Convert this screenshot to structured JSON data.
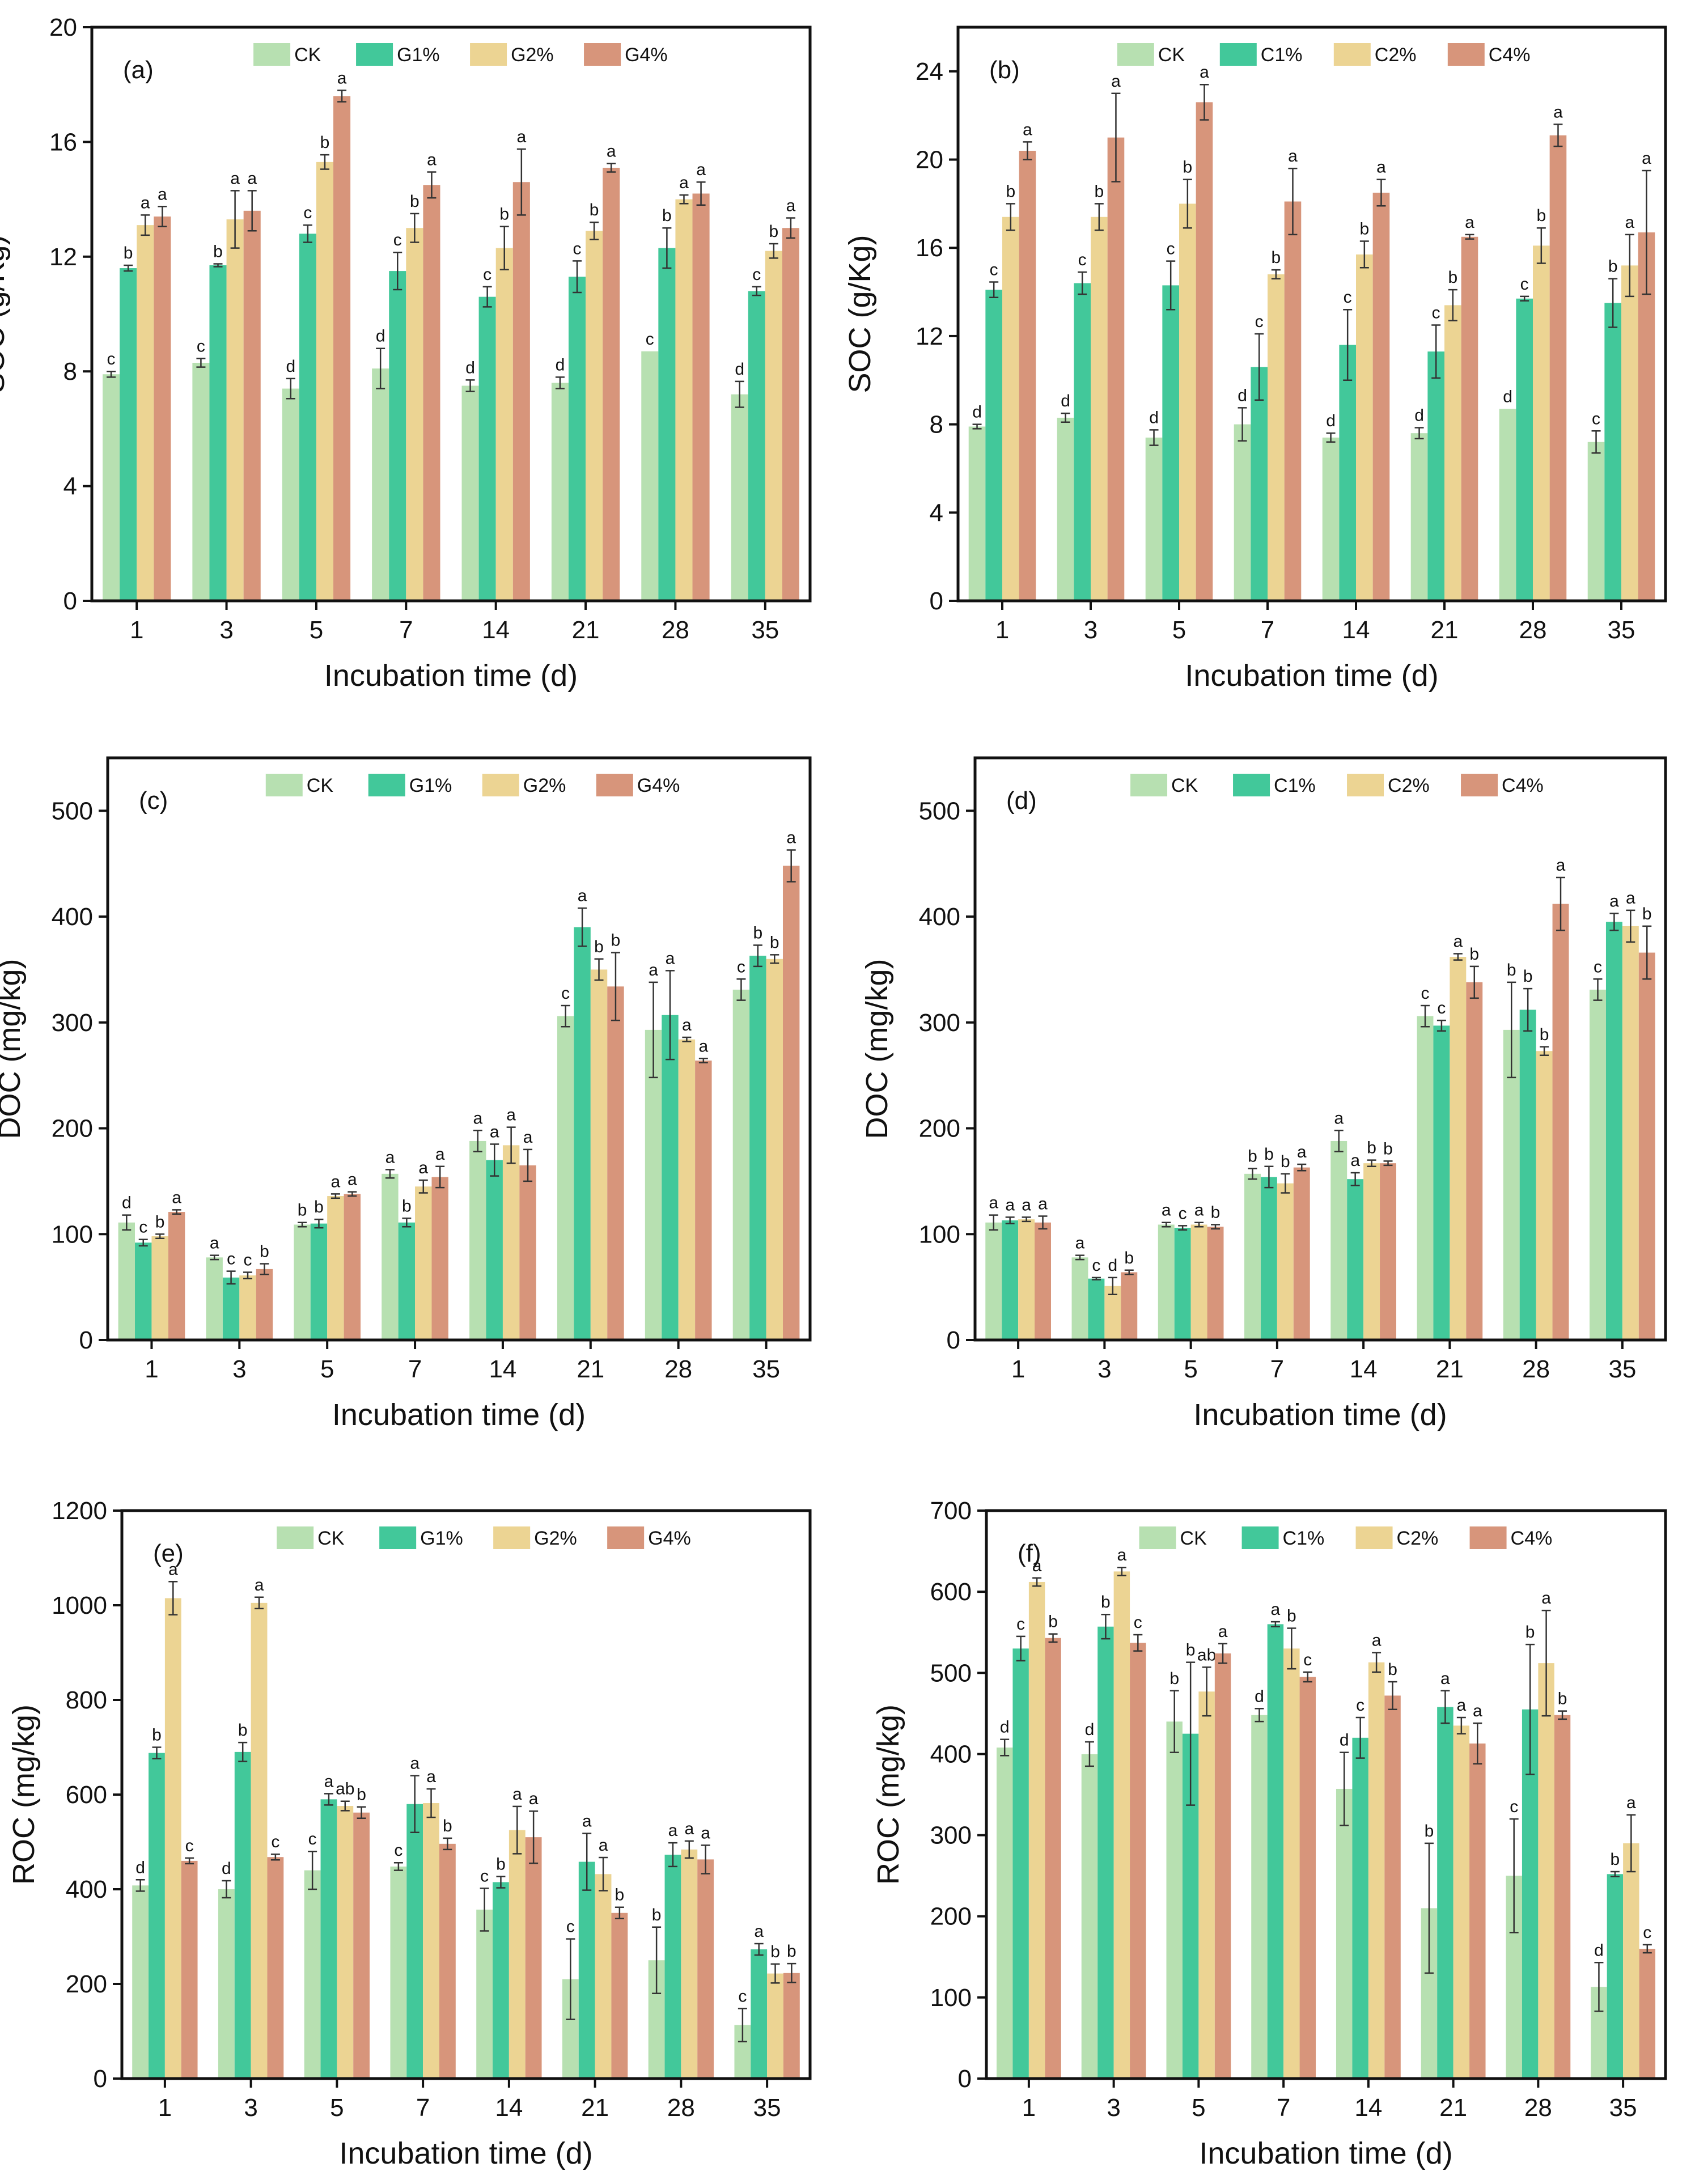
{
  "colors": {
    "CK": "#b7e0b1",
    "treat1": "#42c89a",
    "treat2": "#ecd493",
    "treat4": "#d7957b"
  },
  "categories": [
    "1",
    "3",
    "5",
    "7",
    "14",
    "21",
    "28",
    "35"
  ],
  "chart_data": [
    {
      "type": "bar",
      "panel": "(a)",
      "ylabel": "SOC (g/Kg)",
      "xlabel": "Incubation time (d)",
      "ylim": [
        0,
        20
      ],
      "yticks": [
        0,
        4,
        8,
        12,
        16,
        20
      ],
      "categories": [
        "1",
        "3",
        "5",
        "7",
        "14",
        "21",
        "28",
        "35"
      ],
      "series": [
        {
          "name": "CK",
          "values": [
            7.9,
            8.3,
            7.4,
            8.1,
            7.5,
            7.6,
            8.7,
            7.2
          ],
          "errors": [
            0.1,
            0.15,
            0.35,
            0.7,
            0.2,
            0.2,
            0,
            0.45
          ],
          "letters": [
            "c",
            "c",
            "d",
            "d",
            "d",
            "d",
            "c",
            "d"
          ]
        },
        {
          "name": "G1%",
          "values": [
            11.6,
            11.7,
            12.8,
            11.5,
            10.6,
            11.3,
            12.3,
            10.8
          ],
          "errors": [
            0.1,
            0.05,
            0.3,
            0.65,
            0.35,
            0.55,
            0.7,
            0.15
          ],
          "letters": [
            "b",
            "b",
            "c",
            "c",
            "c",
            "c",
            "b",
            "c"
          ]
        },
        {
          "name": "G2%",
          "values": [
            13.1,
            13.3,
            15.3,
            13.0,
            12.3,
            12.9,
            14.0,
            12.2
          ],
          "errors": [
            0.35,
            1.0,
            0.25,
            0.5,
            0.75,
            0.3,
            0.15,
            0.25
          ],
          "letters": [
            "a",
            "a",
            "b",
            "b",
            "b",
            "b",
            "a",
            "b"
          ]
        },
        {
          "name": "G4%",
          "values": [
            13.4,
            13.6,
            17.6,
            14.5,
            14.6,
            15.1,
            14.2,
            13.0
          ],
          "errors": [
            0.35,
            0.7,
            0.2,
            0.45,
            1.15,
            0.15,
            0.4,
            0.35
          ],
          "letters": [
            "a",
            "a",
            "a",
            "a",
            "a",
            "a",
            "a",
            "a"
          ]
        }
      ]
    },
    {
      "type": "bar",
      "panel": "(b)",
      "ylabel": "SOC (g/Kg)",
      "xlabel": "Incubation time (d)",
      "ylim": [
        0,
        26
      ],
      "yticks": [
        0,
        4,
        8,
        12,
        16,
        20,
        24
      ],
      "categories": [
        "1",
        "3",
        "5",
        "7",
        "14",
        "21",
        "28",
        "35"
      ],
      "series": [
        {
          "name": "CK",
          "values": [
            7.9,
            8.3,
            7.4,
            8.0,
            7.4,
            7.6,
            8.7,
            7.2
          ],
          "errors": [
            0.1,
            0.2,
            0.35,
            0.75,
            0.2,
            0.25,
            0,
            0.5
          ],
          "letters": [
            "d",
            "d",
            "d",
            "d",
            "d",
            "d",
            "d",
            "c"
          ]
        },
        {
          "name": "C1%",
          "values": [
            14.1,
            14.4,
            14.3,
            10.6,
            11.6,
            11.3,
            13.7,
            13.5
          ],
          "errors": [
            0.35,
            0.5,
            1.1,
            1.5,
            1.6,
            1.2,
            0.1,
            1.1
          ],
          "letters": [
            "c",
            "c",
            "c",
            "c",
            "c",
            "c",
            "c",
            "b"
          ]
        },
        {
          "name": "C2%",
          "values": [
            17.4,
            17.4,
            18.0,
            14.8,
            15.7,
            13.4,
            16.1,
            15.2
          ],
          "errors": [
            0.6,
            0.6,
            1.1,
            0.2,
            0.6,
            0.7,
            0.8,
            1.4
          ],
          "letters": [
            "b",
            "b",
            "b",
            "b",
            "b",
            "b",
            "b",
            "a"
          ]
        },
        {
          "name": "C4%",
          "values": [
            20.4,
            21.0,
            22.6,
            18.1,
            18.5,
            16.5,
            21.1,
            16.7
          ],
          "errors": [
            0.4,
            2.0,
            0.8,
            1.5,
            0.6,
            0.1,
            0.5,
            2.8
          ],
          "letters": [
            "a",
            "a",
            "a",
            "a",
            "a",
            "a",
            "a",
            "a"
          ]
        }
      ]
    },
    {
      "type": "bar",
      "panel": "(c)",
      "ylabel": "DOC (mg/kg)",
      "xlabel": "Incubation time (d)",
      "ylim": [
        0,
        550
      ],
      "yticks": [
        0,
        100,
        200,
        300,
        400,
        500
      ],
      "categories": [
        "1",
        "3",
        "5",
        "7",
        "14",
        "21",
        "28",
        "35"
      ],
      "series": [
        {
          "name": "CK",
          "values": [
            111,
            78,
            109,
            157,
            188,
            306,
            293,
            331
          ],
          "errors": [
            7,
            2,
            2,
            4,
            10,
            10,
            45,
            10
          ],
          "letters": [
            "d",
            "a",
            "b",
            "a",
            "a",
            "c",
            "a",
            "c"
          ]
        },
        {
          "name": "G1%",
          "values": [
            92,
            59,
            110,
            111,
            170,
            390,
            307,
            363
          ],
          "errors": [
            3,
            6,
            4,
            4,
            15,
            18,
            42,
            10
          ],
          "letters": [
            "c",
            "c",
            "b",
            "b",
            "a",
            "a",
            "a",
            "b"
          ]
        },
        {
          "name": "G2%",
          "values": [
            98,
            61,
            136,
            145,
            184,
            350,
            284,
            360
          ],
          "errors": [
            2,
            3,
            2,
            6,
            17,
            10,
            2,
            4
          ],
          "letters": [
            "b",
            "c",
            "a",
            "a",
            "a",
            "b",
            "a",
            "b"
          ]
        },
        {
          "name": "G4%",
          "values": [
            121,
            67,
            138,
            154,
            165,
            334,
            264,
            448
          ],
          "errors": [
            2,
            5,
            2,
            10,
            15,
            32,
            2,
            15
          ],
          "letters": [
            "a",
            "b",
            "a",
            "a",
            "a",
            "b",
            "a",
            "a"
          ]
        }
      ]
    },
    {
      "type": "bar",
      "panel": "(d)",
      "ylabel": "DOC (mg/kg)",
      "xlabel": "Incubation time (d)",
      "ylim": [
        0,
        550
      ],
      "yticks": [
        0,
        100,
        200,
        300,
        400,
        500
      ],
      "categories": [
        "1",
        "3",
        "5",
        "7",
        "14",
        "21",
        "28",
        "35"
      ],
      "series": [
        {
          "name": "CK",
          "values": [
            111,
            78,
            109,
            157,
            188,
            306,
            293,
            331
          ],
          "errors": [
            7,
            2,
            2,
            5,
            10,
            10,
            45,
            10
          ],
          "letters": [
            "a",
            "a",
            "a",
            "b",
            "a",
            "c",
            "b",
            "c"
          ]
        },
        {
          "name": "C1%",
          "values": [
            113,
            58,
            106,
            154,
            152,
            297,
            312,
            395
          ],
          "errors": [
            3,
            1,
            2,
            10,
            6,
            5,
            20,
            8
          ],
          "letters": [
            "a",
            "c",
            "c",
            "b",
            "a",
            "c",
            "b",
            "a"
          ]
        },
        {
          "name": "C2%",
          "values": [
            114,
            51,
            109,
            148,
            167,
            362,
            273,
            391
          ],
          "errors": [
            2,
            8,
            2,
            9,
            3,
            3,
            4,
            15
          ],
          "letters": [
            "a",
            "d",
            "a",
            "b",
            "b",
            "a",
            "b",
            "a"
          ]
        },
        {
          "name": "C4%",
          "values": [
            111,
            64,
            107,
            163,
            167,
            338,
            412,
            366
          ],
          "errors": [
            6,
            2,
            2,
            3,
            2,
            15,
            25,
            25
          ],
          "letters": [
            "a",
            "b",
            "b",
            "a",
            "b",
            "b",
            "a",
            "b"
          ]
        }
      ]
    },
    {
      "type": "bar",
      "panel": "(e)",
      "ylabel": "ROC (mg/kg)",
      "xlabel": "Incubation time (d)",
      "ylim": [
        0,
        1200
      ],
      "yticks": [
        0,
        200,
        400,
        600,
        800,
        1000,
        1200
      ],
      "categories": [
        "1",
        "3",
        "5",
        "7",
        "14",
        "21",
        "28",
        "35"
      ],
      "series": [
        {
          "name": "CK",
          "values": [
            408,
            400,
            440,
            448,
            357,
            210,
            250,
            113
          ],
          "errors": [
            12,
            18,
            40,
            8,
            45,
            85,
            70,
            35
          ],
          "letters": [
            "d",
            "d",
            "c",
            "c",
            "c",
            "c",
            "b",
            "c"
          ]
        },
        {
          "name": "G1%",
          "values": [
            688,
            690,
            590,
            580,
            415,
            458,
            473,
            273
          ],
          "errors": [
            12,
            20,
            12,
            60,
            12,
            60,
            25,
            12
          ],
          "letters": [
            "b",
            "b",
            "a",
            "a",
            "b",
            "a",
            "a",
            "a"
          ]
        },
        {
          "name": "G2%",
          "values": [
            1015,
            1005,
            576,
            582,
            525,
            432,
            484,
            222
          ],
          "errors": [
            35,
            12,
            10,
            30,
            50,
            35,
            18,
            20
          ],
          "letters": [
            "a",
            "a",
            "ab",
            "a",
            "a",
            "a",
            "a",
            "b"
          ]
        },
        {
          "name": "G4%",
          "values": [
            460,
            468,
            562,
            496,
            510,
            350,
            463,
            223
          ],
          "errors": [
            6,
            6,
            12,
            12,
            55,
            12,
            30,
            20
          ],
          "letters": [
            "c",
            "c",
            "b",
            "b",
            "a",
            "b",
            "a",
            "b"
          ]
        }
      ]
    },
    {
      "type": "bar",
      "panel": "(f)",
      "ylabel": "ROC (mg/kg)",
      "xlabel": "Incubation time (d)",
      "ylim": [
        0,
        700
      ],
      "yticks": [
        0,
        100,
        200,
        300,
        400,
        500,
        600,
        700
      ],
      "categories": [
        "1",
        "3",
        "5",
        "7",
        "14",
        "21",
        "28",
        "35"
      ],
      "series": [
        {
          "name": "CK",
          "values": [
            408,
            400,
            440,
            448,
            357,
            210,
            250,
            113
          ],
          "errors": [
            10,
            15,
            38,
            8,
            45,
            80,
            70,
            30
          ],
          "letters": [
            "d",
            "d",
            "b",
            "d",
            "d",
            "b",
            "c",
            "d"
          ]
        },
        {
          "name": "C1%",
          "values": [
            530,
            557,
            425,
            560,
            420,
            458,
            455,
            252
          ],
          "errors": [
            15,
            15,
            88,
            3,
            25,
            20,
            80,
            3
          ],
          "letters": [
            "c",
            "b",
            "b",
            "a",
            "c",
            "a",
            "b",
            "b"
          ]
        },
        {
          "name": "C2%",
          "values": [
            612,
            625,
            477,
            530,
            513,
            435,
            512,
            290
          ],
          "errors": [
            5,
            5,
            30,
            25,
            12,
            10,
            65,
            35
          ],
          "letters": [
            "a",
            "a",
            "ab",
            "b",
            "a",
            "a",
            "a",
            "a"
          ]
        },
        {
          "name": "C4%",
          "values": [
            543,
            537,
            524,
            495,
            472,
            413,
            448,
            160
          ],
          "errors": [
            5,
            10,
            12,
            6,
            17,
            25,
            5,
            5
          ],
          "letters": [
            "b",
            "c",
            "a",
            "c",
            "b",
            "a",
            "b",
            "c"
          ]
        }
      ]
    }
  ]
}
